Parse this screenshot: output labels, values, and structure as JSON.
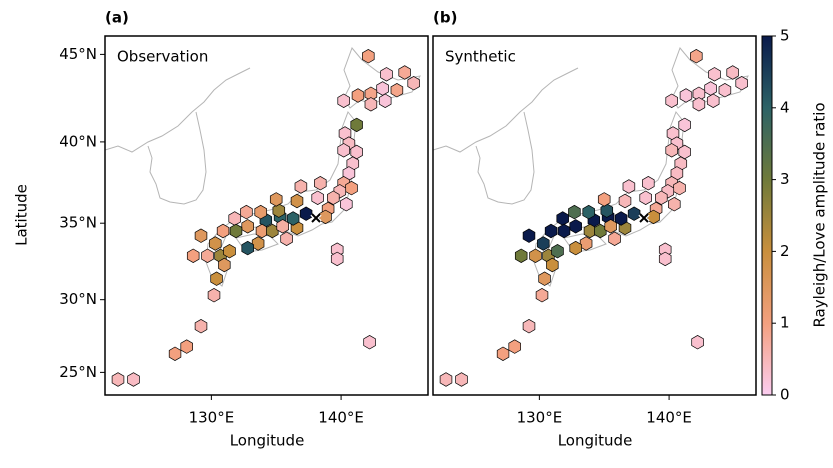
{
  "chart_data": [
    {
      "type": "scatter",
      "panel_label": "(a)",
      "title": "Observation",
      "x_label": "Longitude",
      "y_label": "Latitude",
      "projection": "mercator",
      "xlim": [
        121.8,
        146.7
      ],
      "ylim": [
        23.4,
        46.0
      ],
      "xticks": [
        {
          "value": 130,
          "label": "130°E"
        },
        {
          "value": 140,
          "label": "140°E"
        }
      ],
      "yticks": [
        {
          "value": 25,
          "label": "25°N"
        },
        {
          "value": 30,
          "label": "30°N"
        },
        {
          "value": 35,
          "label": "35°N"
        },
        {
          "value": 40,
          "label": "40°N"
        },
        {
          "value": 45,
          "label": "45°N"
        }
      ],
      "x": [
        142.1,
        144.9,
        143.5,
        143.2,
        144.3,
        145.6,
        142.3,
        141.3,
        140.2,
        143.4,
        142.3,
        141.2,
        140.3,
        140.6,
        140.2,
        141.2,
        140.9,
        140.6,
        138.4,
        140.2,
        140.8,
        139.9,
        139.4,
        140.4,
        136.9,
        138.2,
        139.0,
        138.8,
        137.3,
        136.6,
        136.6,
        136.3,
        135.3,
        134.2,
        135.2,
        135.0,
        133.8,
        132.7,
        131.8,
        132.8,
        133.9,
        134.7,
        135.5,
        135.8,
        133.6,
        132.8,
        131.9,
        130.9,
        129.2,
        128.6,
        129.7,
        130.7,
        131.4,
        130.3,
        131.0,
        130.4,
        130.2,
        129.2,
        128.1,
        127.2,
        122.8,
        124.0,
        139.7,
        139.7,
        142.2
      ],
      "y": [
        44.9,
        44.0,
        43.9,
        43.1,
        43.0,
        43.4,
        42.8,
        42.7,
        42.4,
        42.4,
        42.2,
        41.0,
        40.5,
        39.9,
        39.5,
        39.4,
        38.7,
        38.1,
        37.5,
        37.5,
        37.2,
        37.0,
        36.6,
        36.2,
        37.3,
        36.6,
        35.9,
        35.4,
        35.6,
        36.4,
        34.7,
        35.3,
        35.4,
        35.2,
        35.8,
        36.5,
        35.7,
        35.7,
        35.3,
        34.8,
        34.5,
        34.5,
        34.8,
        34.0,
        33.7,
        33.4,
        34.5,
        34.5,
        34.2,
        32.9,
        32.9,
        32.9,
        33.2,
        33.7,
        32.3,
        31.4,
        30.3,
        28.2,
        26.8,
        26.3,
        24.5,
        24.5,
        33.3,
        32.7,
        27.1
      ],
      "values": [
        1.0,
        0.8,
        0.3,
        0.2,
        0.9,
        0.5,
        0.9,
        1.0,
        0.3,
        0.2,
        0.5,
        3.0,
        0.3,
        0.4,
        0.3,
        0.3,
        0.3,
        0.2,
        0.6,
        0.8,
        1.0,
        0.5,
        0.6,
        0.2,
        0.6,
        0.3,
        1.0,
        1.5,
        5.0,
        1.8,
        2.0,
        4.0,
        4.0,
        4.2,
        2.5,
        1.5,
        1.3,
        0.8,
        0.5,
        1.5,
        1.2,
        2.5,
        0.7,
        0.6,
        1.8,
        4.2,
        3.0,
        1.0,
        1.5,
        1.0,
        0.8,
        2.5,
        2.0,
        1.8,
        1.5,
        2.0,
        0.6,
        0.6,
        1.0,
        1.0,
        0.5,
        0.4,
        0.3,
        0.3,
        0.3
      ]
    },
    {
      "type": "scatter",
      "panel_label": "(b)",
      "title": "Synthetic",
      "x_label": "Longitude",
      "projection": "mercator",
      "xlim": [
        121.8,
        146.7
      ],
      "ylim": [
        23.4,
        46.0
      ],
      "xticks": [
        {
          "value": 130,
          "label": "130°E"
        },
        {
          "value": 140,
          "label": "140°E"
        }
      ],
      "x": [
        142.1,
        144.9,
        143.5,
        143.2,
        144.3,
        145.6,
        142.3,
        141.3,
        140.2,
        143.4,
        142.3,
        141.2,
        140.3,
        140.6,
        140.2,
        141.2,
        140.9,
        140.6,
        138.4,
        140.2,
        140.8,
        139.9,
        139.4,
        140.4,
        136.9,
        138.2,
        139.0,
        138.8,
        137.3,
        136.6,
        136.6,
        136.3,
        135.3,
        134.2,
        135.2,
        135.0,
        133.8,
        132.7,
        131.8,
        132.8,
        133.9,
        134.7,
        135.5,
        135.8,
        133.6,
        132.8,
        131.9,
        130.9,
        129.2,
        128.6,
        129.7,
        130.7,
        131.4,
        130.3,
        131.0,
        130.4,
        130.2,
        129.2,
        128.1,
        127.2,
        122.8,
        124.0,
        139.7,
        139.7,
        142.2
      ],
      "y": [
        44.9,
        44.0,
        43.9,
        43.1,
        43.0,
        43.4,
        42.8,
        42.7,
        42.4,
        42.4,
        42.2,
        41.0,
        40.5,
        39.9,
        39.5,
        39.4,
        38.7,
        38.1,
        37.5,
        37.5,
        37.2,
        37.0,
        36.6,
        36.2,
        37.3,
        36.6,
        35.9,
        35.4,
        35.6,
        36.4,
        34.7,
        35.3,
        35.4,
        35.2,
        35.8,
        36.5,
        35.7,
        35.7,
        35.3,
        34.8,
        34.5,
        34.5,
        34.8,
        34.0,
        33.7,
        33.4,
        34.5,
        34.5,
        34.2,
        32.9,
        32.9,
        32.9,
        33.2,
        33.7,
        32.3,
        31.4,
        30.3,
        28.2,
        26.8,
        26.3,
        24.5,
        24.5,
        33.3,
        32.7,
        27.1
      ],
      "values": [
        0.9,
        0.4,
        0.3,
        0.2,
        0.3,
        0.3,
        0.3,
        0.2,
        0.3,
        0.3,
        0.3,
        0.2,
        0.3,
        0.3,
        0.5,
        0.3,
        0.4,
        0.4,
        0.3,
        0.5,
        0.6,
        0.4,
        0.5,
        0.6,
        0.3,
        0.3,
        0.8,
        2.0,
        4.5,
        0.5,
        2.5,
        5.0,
        5.0,
        5.0,
        4.2,
        1.0,
        4.0,
        3.5,
        5.0,
        5.0,
        2.5,
        3.0,
        1.5,
        0.8,
        1.2,
        2.0,
        5.0,
        5.0,
        5.0,
        3.0,
        1.8,
        2.5,
        3.5,
        4.5,
        2.0,
        1.5,
        0.8,
        0.5,
        1.0,
        1.0,
        0.5,
        0.5,
        0.3,
        0.3,
        0.3
      ]
    },
    {
      "type": "colorbar",
      "label": "Rayleigh/Love amplitude ratio",
      "lim": [
        0,
        5
      ],
      "ticks": [
        0,
        1,
        2,
        3,
        4,
        5
      ],
      "colormap": [
        "#fbcdf0",
        "#f3a07f",
        "#c98f3d",
        "#6f7a3a",
        "#2c6266",
        "#0a1a4b"
      ]
    }
  ]
}
